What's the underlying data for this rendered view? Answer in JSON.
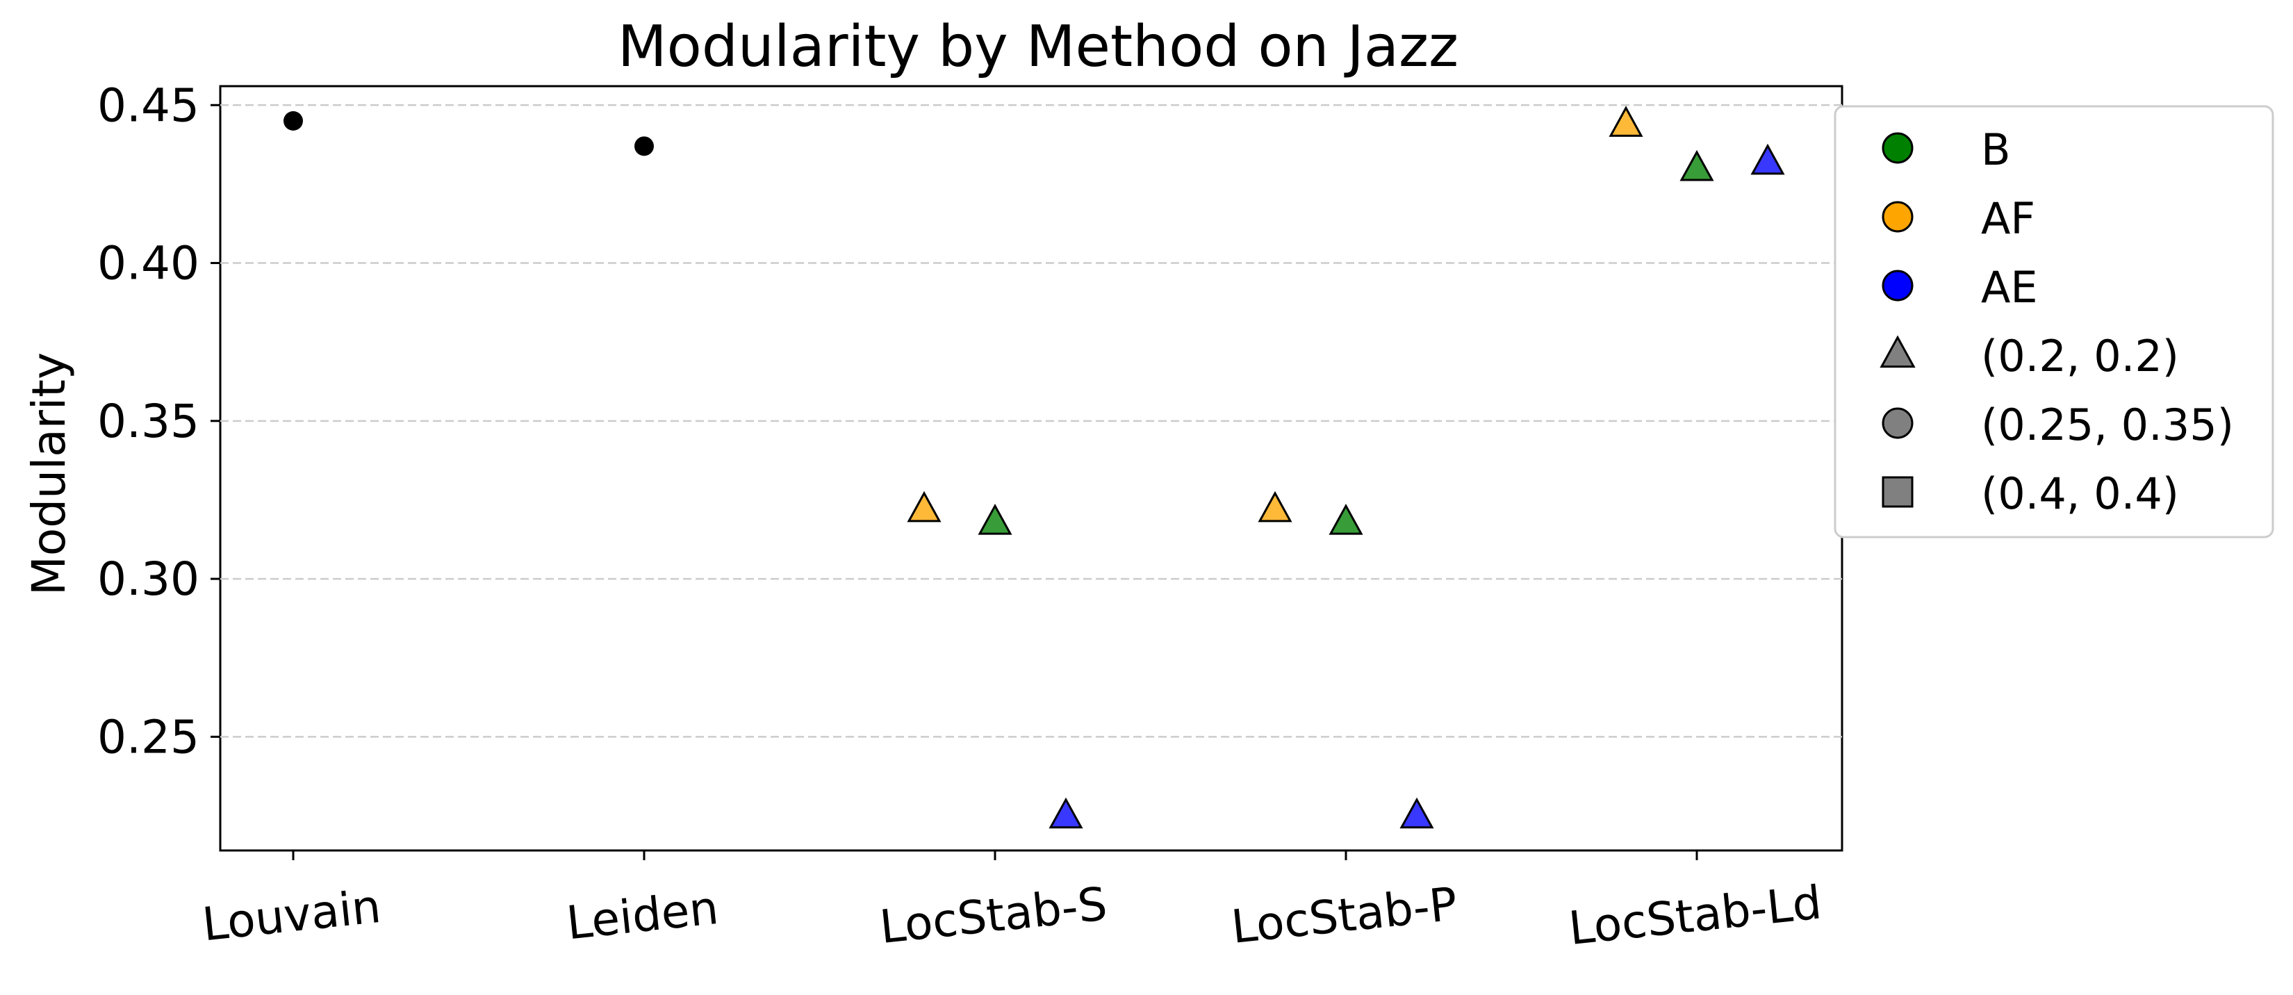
{
  "chart_data": {
    "type": "scatter",
    "title": "Modularity by Method on Jazz",
    "xlabel": "",
    "ylabel": "Modularity",
    "categories": [
      "Louvain",
      "Leiden",
      "LocStab-S",
      "LocStab-P",
      "LocStab-Ld"
    ],
    "ylim": [
      0.214,
      0.456
    ],
    "yticks": [
      0.25,
      0.3,
      0.35,
      0.4,
      0.45
    ],
    "ytick_labels": [
      "0.25",
      "0.30",
      "0.35",
      "0.40",
      "0.45"
    ],
    "grid": {
      "y": true,
      "x": false,
      "style": "dashed"
    },
    "legend_position": "outside-right",
    "points": [
      {
        "category": "Louvain",
        "offset": 0,
        "value": 0.445,
        "marker": "circle",
        "color": "#000000"
      },
      {
        "category": "Leiden",
        "offset": 0,
        "value": 0.437,
        "marker": "circle",
        "color": "#000000"
      },
      {
        "category": "LocStab-S",
        "offset": -1,
        "value": 0.322,
        "marker": "triangle",
        "series": "AF",
        "color": "#FFA500"
      },
      {
        "category": "LocStab-S",
        "offset": 0,
        "value": 0.318,
        "marker": "triangle",
        "series": "B",
        "color": "#008000"
      },
      {
        "category": "LocStab-S",
        "offset": 1,
        "value": 0.225,
        "marker": "triangle",
        "series": "AE",
        "color": "#0000FF"
      },
      {
        "category": "LocStab-P",
        "offset": -1,
        "value": 0.322,
        "marker": "triangle",
        "series": "AF",
        "color": "#FFA500"
      },
      {
        "category": "LocStab-P",
        "offset": 0,
        "value": 0.318,
        "marker": "triangle",
        "series": "B",
        "color": "#008000"
      },
      {
        "category": "LocStab-P",
        "offset": 1,
        "value": 0.225,
        "marker": "triangle",
        "series": "AE",
        "color": "#0000FF"
      },
      {
        "category": "LocStab-Ld",
        "offset": -1,
        "value": 0.444,
        "marker": "triangle",
        "series": "AF",
        "color": "#FFA500"
      },
      {
        "category": "LocStab-Ld",
        "offset": 0,
        "value": 0.43,
        "marker": "triangle",
        "series": "B",
        "color": "#008000"
      },
      {
        "category": "LocStab-Ld",
        "offset": 1,
        "value": 0.432,
        "marker": "triangle",
        "series": "AE",
        "color": "#0000FF"
      }
    ],
    "legend": [
      {
        "label": "B",
        "marker": "circle",
        "color": "#008000"
      },
      {
        "label": "AF",
        "marker": "circle",
        "color": "#FFA500"
      },
      {
        "label": "AE",
        "marker": "circle",
        "color": "#0000FF"
      },
      {
        "label": "(0.2, 0.2)",
        "marker": "triangle",
        "color": "#808080"
      },
      {
        "label": "(0.25, 0.35)",
        "marker": "circle",
        "color": "#808080"
      },
      {
        "label": "(0.4, 0.4)",
        "marker": "square",
        "color": "#808080"
      }
    ]
  }
}
